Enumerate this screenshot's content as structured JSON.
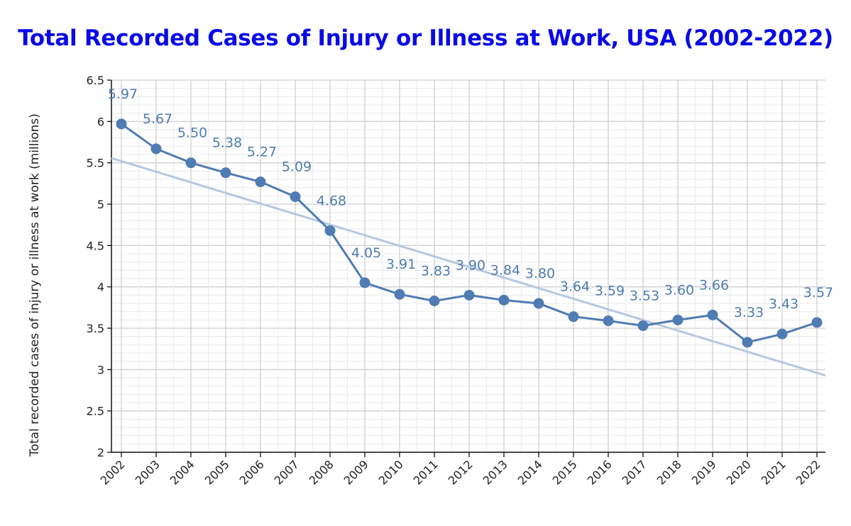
{
  "chart_data": {
    "type": "line",
    "title": "Total Recorded Cases of Injury or Illness at Work, USA (2002-2022)",
    "xlabel": "",
    "ylabel": "Total recorded cases of injury or illness at work (millions)",
    "ylim": [
      2,
      6.5
    ],
    "yticks": [
      "2",
      "2.5",
      "3",
      "3.5",
      "4",
      "4.5",
      "5",
      "5.5",
      "6",
      "6.5"
    ],
    "categories": [
      "2002",
      "2003",
      "2004",
      "2005",
      "2006",
      "2007",
      "2008",
      "2009",
      "2010",
      "2011",
      "2012",
      "2013",
      "2014",
      "2015",
      "2016",
      "2017",
      "2018",
      "2019",
      "2020",
      "2021",
      "2022"
    ],
    "series": [
      {
        "name": "Total recorded cases",
        "color": "#4f7cb3",
        "values": [
          5.97,
          5.67,
          5.5,
          5.38,
          5.27,
          5.09,
          4.68,
          4.05,
          3.91,
          3.83,
          3.9,
          3.84,
          3.8,
          3.64,
          3.59,
          3.53,
          3.6,
          3.66,
          3.33,
          3.43,
          3.57
        ],
        "labels": [
          "5.97",
          "5.67",
          "5.50",
          "5.38",
          "5.27",
          "5.09",
          "4.68",
          "4.05",
          "3.91",
          "3.83",
          "3.90",
          "3.84",
          "3.80",
          "3.64",
          "3.59",
          "3.53",
          "3.60",
          "3.66",
          "3.33",
          "3.43",
          "3.57"
        ]
      }
    ],
    "trendline": {
      "name": "Linear trend",
      "color": "#b5c8e0",
      "start": 5.52,
      "end": 2.96
    },
    "grid": true
  }
}
